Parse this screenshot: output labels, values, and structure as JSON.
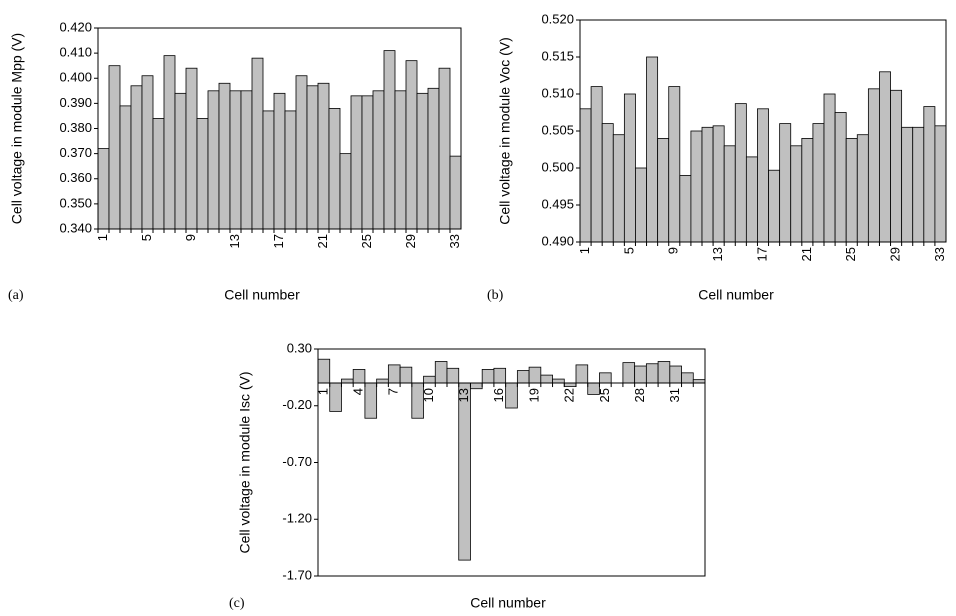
{
  "chart_data": [
    {
      "type": "bar",
      "panel_label": "(a)",
      "ylabel": "Cell voltage in module Mpp (V)",
      "xlabel": "Cell number",
      "color": "#c0c0c0",
      "categories": [
        "1",
        null,
        null,
        null,
        "5",
        null,
        null,
        null,
        "9",
        null,
        null,
        null,
        "13",
        null,
        null,
        null,
        "17",
        null,
        null,
        null,
        "21",
        null,
        null,
        null,
        "25",
        null,
        null,
        null,
        "29",
        null,
        null,
        null,
        "33"
      ],
      "values": [
        0.372,
        0.405,
        0.389,
        0.397,
        0.401,
        0.384,
        0.409,
        0.394,
        0.404,
        0.384,
        0.395,
        0.398,
        0.395,
        0.395,
        0.408,
        0.387,
        0.394,
        0.387,
        0.401,
        0.397,
        0.398,
        0.388,
        0.37,
        0.393,
        0.393,
        0.395,
        0.411,
        0.395,
        0.407,
        0.394,
        0.396,
        0.404,
        0.369
      ],
      "ylim": [
        0.34,
        0.42
      ],
      "yticks": [
        {
          "value": 0.34,
          "label": "0.340"
        },
        {
          "value": 0.35,
          "label": "0.350"
        },
        {
          "value": 0.36,
          "label": "0.360"
        },
        {
          "value": 0.37,
          "label": "0.370"
        },
        {
          "value": 0.38,
          "label": "0.380"
        },
        {
          "value": 0.39,
          "label": "0.390"
        },
        {
          "value": 0.4,
          "label": "0.400"
        },
        {
          "value": 0.41,
          "label": "0.410"
        },
        {
          "value": 0.42,
          "label": "0.420"
        }
      ]
    },
    {
      "type": "bar",
      "panel_label": "(b)",
      "ylabel": "Cell voltage in module Voc (V)",
      "xlabel": "Cell number",
      "color": "#c0c0c0",
      "categories": [
        "1",
        null,
        null,
        null,
        "5",
        null,
        null,
        null,
        "9",
        null,
        null,
        null,
        "13",
        null,
        null,
        null,
        "17",
        null,
        null,
        null,
        "21",
        null,
        null,
        null,
        "25",
        null,
        null,
        null,
        "29",
        null,
        null,
        null,
        "33"
      ],
      "values": [
        0.508,
        0.511,
        0.506,
        0.5045,
        0.51,
        0.5,
        0.515,
        0.504,
        0.511,
        0.499,
        0.505,
        0.5055,
        0.5057,
        0.503,
        0.5087,
        0.5015,
        0.508,
        0.4997,
        0.506,
        0.503,
        0.504,
        0.506,
        0.51,
        0.5075,
        0.504,
        0.5045,
        0.5107,
        0.513,
        0.5105,
        0.5055,
        0.5055,
        0.5083,
        0.5057
      ],
      "ylim": [
        0.49,
        0.52
      ],
      "yticks": [
        {
          "value": 0.49,
          "label": "0.490"
        },
        {
          "value": 0.495,
          "label": "0.495"
        },
        {
          "value": 0.5,
          "label": "0.500"
        },
        {
          "value": 0.505,
          "label": "0.505"
        },
        {
          "value": 0.51,
          "label": "0.510"
        },
        {
          "value": 0.515,
          "label": "0.515"
        },
        {
          "value": 0.52,
          "label": "0.520"
        }
      ]
    },
    {
      "type": "bar",
      "panel_label": "(c)",
      "ylabel": "Cell voltage in module Isc (V)",
      "xlabel": "Cell number",
      "color": "#c0c0c0",
      "categories": [
        "1",
        null,
        null,
        "4",
        null,
        null,
        "7",
        null,
        null,
        "10",
        null,
        null,
        "13",
        null,
        null,
        "16",
        null,
        null,
        "19",
        null,
        null,
        "22",
        null,
        null,
        "25",
        null,
        null,
        "28",
        null,
        null,
        "31",
        null,
        null
      ],
      "values": [
        0.21,
        -0.25,
        0.035,
        0.12,
        -0.31,
        0.035,
        0.16,
        0.14,
        -0.31,
        0.06,
        0.19,
        0.13,
        -1.56,
        -0.05,
        0.12,
        0.13,
        -0.22,
        0.11,
        0.14,
        0.07,
        0.035,
        -0.03,
        0.16,
        -0.1,
        0.09,
        0,
        0.18,
        0.15,
        0.17,
        0.19,
        0.15,
        0.09,
        0.03
      ],
      "ylim": [
        -1.7,
        0.3
      ],
      "yticks": [
        {
          "value": 0.3,
          "label": "0.30"
        },
        {
          "value": -0.2,
          "label": "-0.20"
        },
        {
          "value": -0.7,
          "label": "-0.70"
        },
        {
          "value": -1.2,
          "label": "-1.20"
        },
        {
          "value": -1.7,
          "label": "-1.70"
        }
      ]
    }
  ]
}
